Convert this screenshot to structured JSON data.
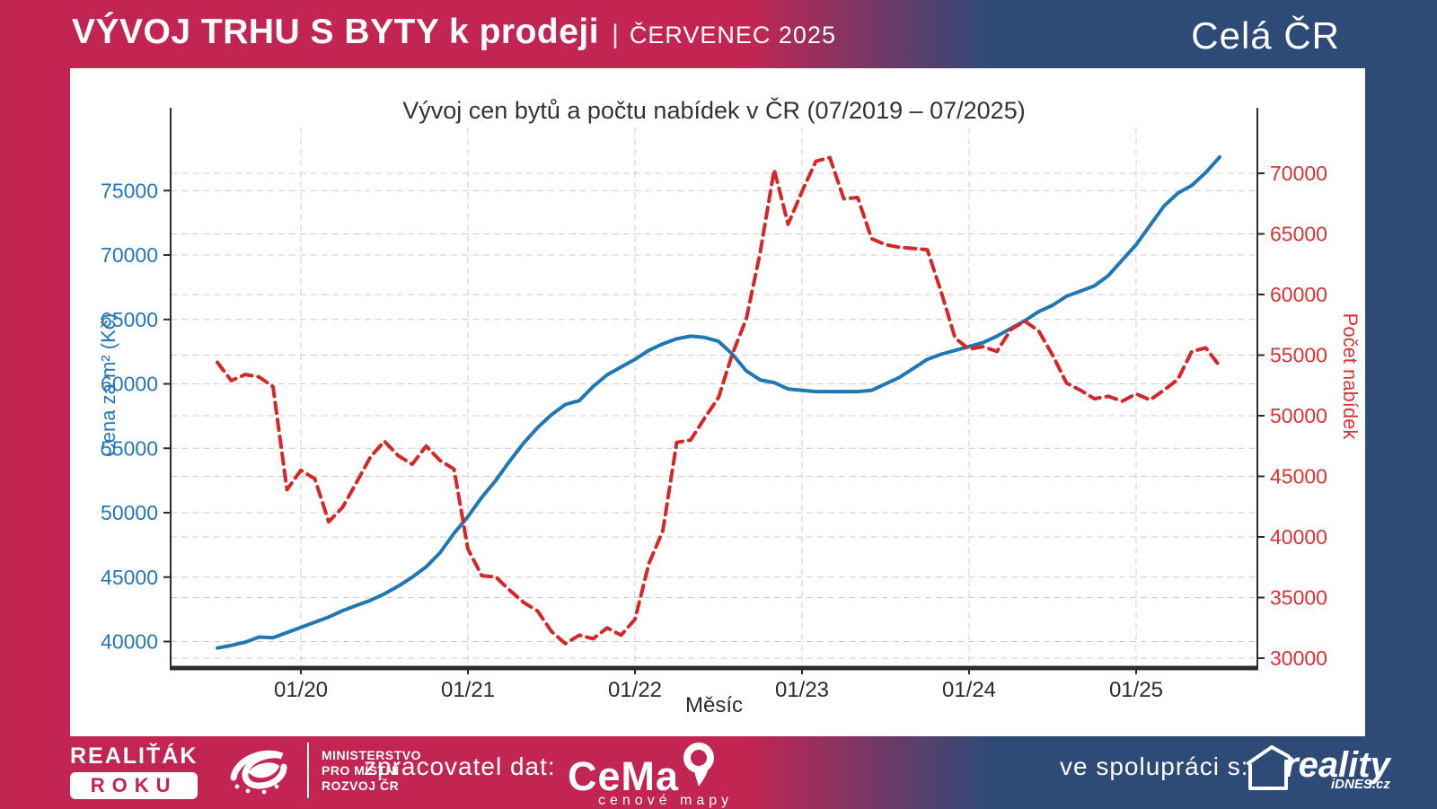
{
  "header": {
    "title": "VÝVOJ TRHU S BYTY k prodeji",
    "separator": "|",
    "period": "ČERVENEC 2025",
    "region": "Celá ČR"
  },
  "chart_data": {
    "type": "line",
    "title": "Vývoj cen bytů a počtu nabídek v ČR (07/2019 – 07/2025)",
    "xlabel": "Měsíc",
    "x_monthly_range": "07/2019 – 07/2025",
    "x_tick_labels": [
      "01/20",
      "01/21",
      "01/22",
      "01/23",
      "01/24",
      "01/25"
    ],
    "grid": true,
    "left_axis": {
      "label": "Cena za m² (Kč)",
      "color": "#2276b9",
      "ticks": [
        40000,
        45000,
        50000,
        55000,
        60000,
        65000,
        70000,
        75000
      ],
      "ylim": [
        38200,
        79800
      ]
    },
    "right_axis": {
      "label": "Počet nabídek",
      "color": "#d93333",
      "ticks": [
        30000,
        35000,
        40000,
        45000,
        50000,
        55000,
        60000,
        65000,
        70000
      ],
      "ylim": [
        28700,
        74000
      ]
    },
    "series": [
      {
        "name": "Cena za m² (Kč)",
        "axis": "left",
        "style": "solid",
        "color": "#1f77b4",
        "values": [
          39500,
          39700,
          39950,
          40350,
          40300,
          40700,
          41100,
          41500,
          41900,
          42400,
          42800,
          43200,
          43700,
          44300,
          45000,
          45800,
          46900,
          48400,
          49700,
          51200,
          52500,
          54000,
          55400,
          56600,
          57600,
          58400,
          58700,
          59800,
          60700,
          61300,
          61900,
          62600,
          63100,
          63500,
          63700,
          63600,
          63300,
          62300,
          61000,
          60300,
          60100,
          59600,
          59500,
          59400,
          59400,
          59400,
          59400,
          59500,
          60000,
          60500,
          61200,
          61900,
          62300,
          62600,
          62900,
          63200,
          63700,
          64300,
          64900,
          65600,
          66100,
          66800,
          67200,
          67600,
          68400,
          69600,
          70800,
          72300,
          73800,
          74800,
          75400,
          76400,
          77600
        ]
      },
      {
        "name": "Počet nabídek",
        "axis": "right",
        "style": "dashed",
        "color": "#d62728",
        "values": [
          54400,
          52900,
          53400,
          53200,
          52400,
          43900,
          45500,
          44800,
          41250,
          42450,
          44500,
          46600,
          47900,
          46700,
          46000,
          47500,
          46300,
          45600,
          39000,
          36800,
          36700,
          35600,
          34600,
          33900,
          32200,
          31200,
          31900,
          31600,
          32500,
          31900,
          33200,
          37800,
          40500,
          47800,
          48000,
          49800,
          51500,
          55100,
          58000,
          63500,
          70300,
          65800,
          68500,
          71000,
          71300,
          67900,
          68000,
          64600,
          64100,
          63900,
          63800,
          63700,
          60200,
          56400,
          55500,
          55700,
          55300,
          57100,
          57800,
          57000,
          55000,
          52700,
          52100,
          51400,
          51600,
          51200,
          51800,
          51300,
          52100,
          53000,
          55300,
          55600,
          54100
        ]
      }
    ]
  },
  "footer": {
    "award_line1": "REALIŤÁK",
    "award_line2": "ROKU",
    "ministry_lines": [
      "MINISTERSTVO",
      "PRO MÍSTNÍ",
      "ROZVOJ ČR"
    ],
    "provider_label": "zpracovatel dat:",
    "cemap_name": "CeMa",
    "cemap_sub": "cenové mapy",
    "partner_label": "ve spolupráci s:",
    "partner_name": "reality",
    "partner_sub": "iDNES.cz"
  },
  "colors": {
    "crimson": "#c32552",
    "navy": "#2e4a77",
    "price_line": "#1f77b4",
    "listings_line": "#d62728",
    "grid": "#cccccc",
    "spine": "#2b2b2b"
  }
}
